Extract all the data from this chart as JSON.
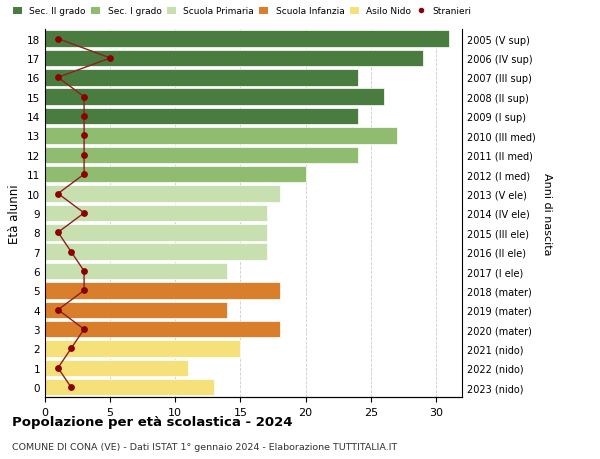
{
  "ages": [
    0,
    1,
    2,
    3,
    4,
    5,
    6,
    7,
    8,
    9,
    10,
    11,
    12,
    13,
    14,
    15,
    16,
    17,
    18
  ],
  "bar_values": [
    13,
    11,
    15,
    18,
    14,
    18,
    14,
    17,
    17,
    17,
    18,
    20,
    24,
    27,
    24,
    26,
    24,
    29,
    31
  ],
  "stranieri_values": [
    2,
    1,
    2,
    3,
    1,
    3,
    3,
    2,
    1,
    3,
    1,
    3,
    3,
    3,
    3,
    3,
    1,
    5,
    1
  ],
  "right_labels": [
    "2023 (nido)",
    "2022 (nido)",
    "2021 (nido)",
    "2020 (mater)",
    "2019 (mater)",
    "2018 (mater)",
    "2017 (I ele)",
    "2016 (II ele)",
    "2015 (III ele)",
    "2014 (IV ele)",
    "2013 (V ele)",
    "2012 (I med)",
    "2011 (II med)",
    "2010 (III med)",
    "2009 (I sup)",
    "2008 (II sup)",
    "2007 (III sup)",
    "2006 (IV sup)",
    "2005 (V sup)"
  ],
  "bar_colors": [
    "#f5e07a",
    "#f5e07a",
    "#f5e07a",
    "#d97e2a",
    "#d97e2a",
    "#d97e2a",
    "#c8dfb0",
    "#c8dfb0",
    "#c8dfb0",
    "#c8dfb0",
    "#c8dfb0",
    "#8fbc6e",
    "#8fbc6e",
    "#8fbc6e",
    "#4a7c3f",
    "#4a7c3f",
    "#4a7c3f",
    "#4a7c3f",
    "#4a7c3f"
  ],
  "legend_labels": [
    "Sec. II grado",
    "Sec. I grado",
    "Scuola Primaria",
    "Scuola Infanzia",
    "Asilo Nido",
    "Stranieri"
  ],
  "legend_colors": [
    "#4a7c3f",
    "#8fbc6e",
    "#c8dfb0",
    "#d97e2a",
    "#f5e07a",
    "#8b0000"
  ],
  "title": "Popolazione per età scolastica - 2024",
  "subtitle": "COMUNE DI CONA (VE) - Dati ISTAT 1° gennaio 2024 - Elaborazione TUTTITALIA.IT",
  "ylabel": "Età alunni",
  "right_ylabel": "Anni di nascita",
  "xlim": [
    0,
    32
  ],
  "background_color": "#ffffff",
  "grid_color": "#cccccc",
  "stranieri_color": "#8b0000",
  "line_color": "#8b2020"
}
